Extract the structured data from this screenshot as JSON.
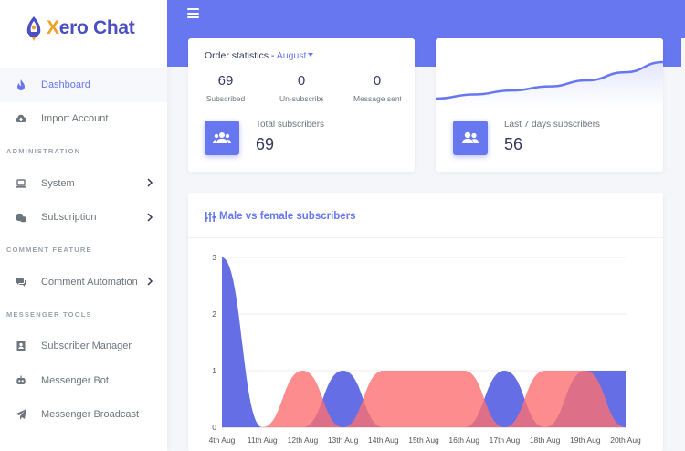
{
  "brand": {
    "x": "X",
    "rest": "ero Chat"
  },
  "sidebar": {
    "items": [
      {
        "type": "item",
        "label": "Dashboard",
        "icon": "fire-icon",
        "active": true
      },
      {
        "type": "item",
        "label": "Import Account",
        "icon": "cloud-upload-icon"
      },
      {
        "type": "header",
        "label": "ADMINISTRATION"
      },
      {
        "type": "item",
        "label": "System",
        "icon": "laptop-icon",
        "chevron": true
      },
      {
        "type": "item",
        "label": "Subscription",
        "icon": "coins-icon",
        "chevron": true
      },
      {
        "type": "header",
        "label": "COMMENT FEATURE"
      },
      {
        "type": "item",
        "label": "Comment Automation",
        "icon": "comments-icon",
        "chevron": true
      },
      {
        "type": "header",
        "label": "MESSENGER TOOLS"
      },
      {
        "type": "item",
        "label": "Subscriber Manager",
        "icon": "address-book-icon"
      },
      {
        "type": "item",
        "label": "Messenger Bot",
        "icon": "robot-icon"
      },
      {
        "type": "item",
        "label": "Messenger Broadcast",
        "icon": "paper-plane-icon"
      }
    ]
  },
  "order_stats": {
    "title": "Order statistics - ",
    "month": "August",
    "kpis": [
      {
        "value": "69",
        "label": "Subscribed"
      },
      {
        "value": "0",
        "label": "Un-subscribed"
      },
      {
        "value": "0",
        "label": "Message sent"
      }
    ],
    "total_label": "Total subscribers",
    "total_value": "69"
  },
  "last7": {
    "label": "Last 7 days subscribers",
    "value": "56"
  },
  "gender_chart_title": "Male vs female subscribers",
  "colors": {
    "primary": "#6777ef",
    "male": "#4a55e0",
    "female": "#fc6f72"
  },
  "chart_data": {
    "type": "area",
    "categories": [
      "4th Aug",
      "11th Aug",
      "12th Aug",
      "13th Aug",
      "14th Aug",
      "15th Aug",
      "16th Aug",
      "17th Aug",
      "18th Aug",
      "19th Aug",
      "20th Aug"
    ],
    "series": [
      {
        "color": "#4a55e0",
        "values": [
          3,
          0,
          0,
          1,
          0,
          0,
          0,
          1,
          0,
          1,
          1
        ]
      },
      {
        "color": "#fc6f72",
        "values": [
          0,
          0,
          1,
          0,
          1,
          1,
          1,
          0,
          1,
          1,
          0
        ]
      }
    ],
    "ylim": [
      0,
      3
    ],
    "yticks": [
      "0",
      "1",
      "2",
      "3"
    ],
    "grid": true
  },
  "sparkline": {
    "values": [
      0,
      1,
      2,
      3,
      4.5,
      6.5,
      9
    ]
  }
}
